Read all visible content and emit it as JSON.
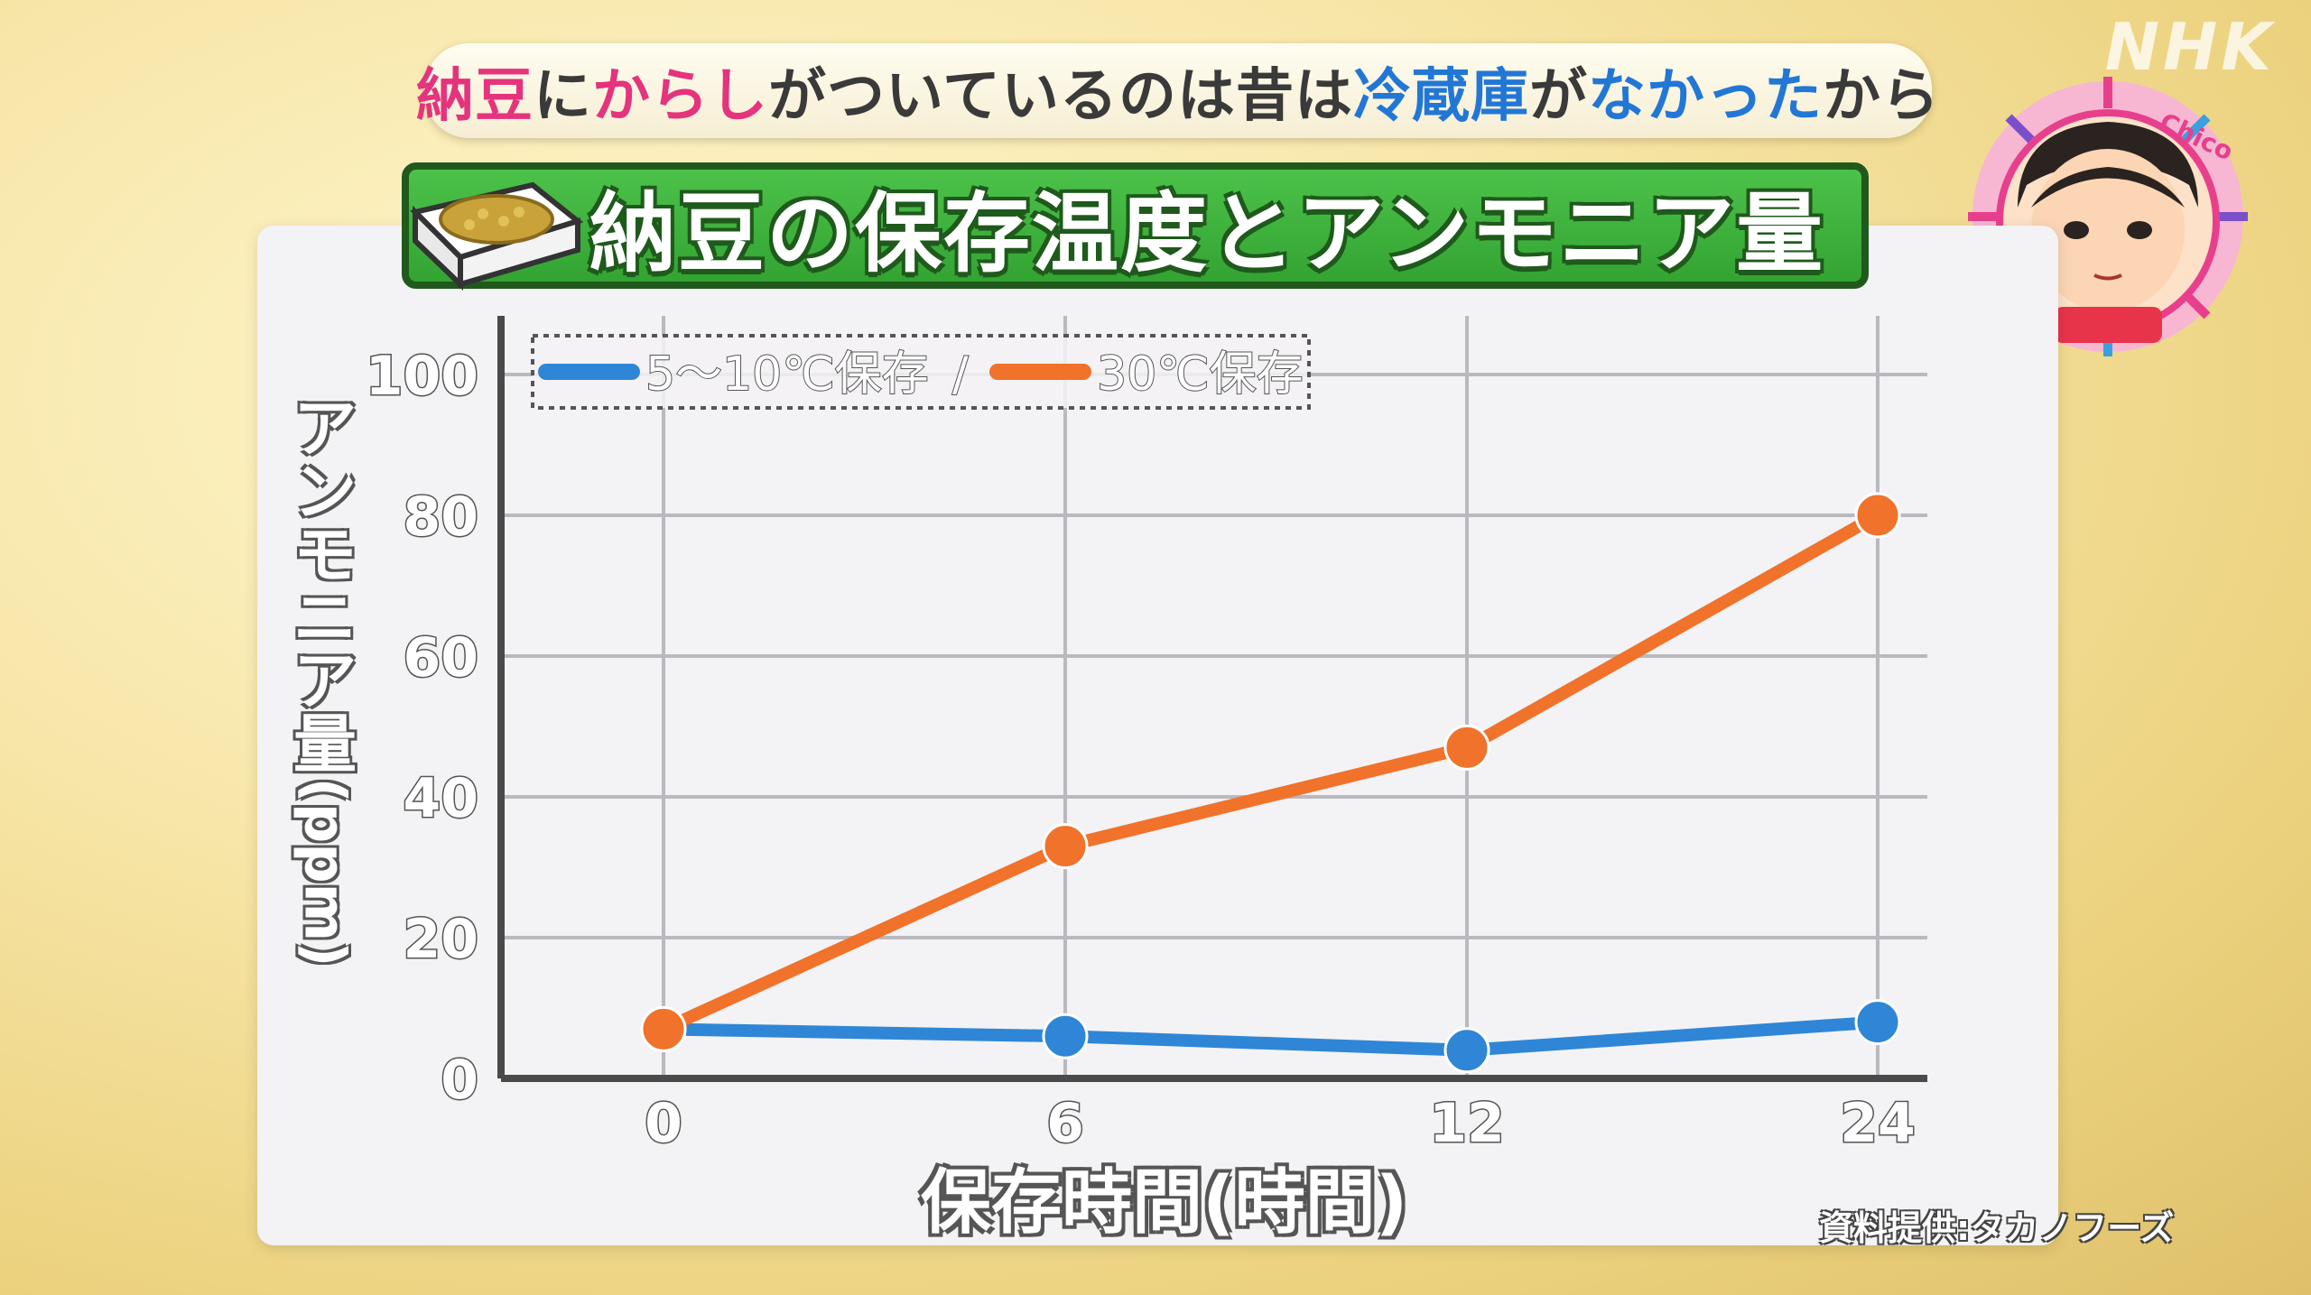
{
  "caption": {
    "parts": [
      {
        "text": "納豆",
        "color": "#e5337d"
      },
      {
        "text": "に",
        "color": "#3a3a3a"
      },
      {
        "text": "からし",
        "color": "#e5337d"
      },
      {
        "text": "がついているのは昔は",
        "color": "#3a3a3a"
      },
      {
        "text": "冷蔵庫",
        "color": "#2277d6"
      },
      {
        "text": "が",
        "color": "#3a3a3a"
      },
      {
        "text": "なかった",
        "color": "#2277d6"
      },
      {
        "text": "から",
        "color": "#3a3a3a"
      }
    ]
  },
  "logo": "NHK",
  "badge_text": "Chico",
  "chart_data": {
    "type": "line",
    "title": "納豆の保存温度とアンモニア量",
    "x": [
      0,
      6,
      12,
      24
    ],
    "x_tick_labels": [
      "0",
      "6",
      "12",
      "24"
    ],
    "xlabel": "保存時間(時間)",
    "ylabel_vertical": "アンモニア量",
    "ylabel_unit": "(ppm)",
    "y_ticks": [
      0,
      20,
      40,
      60,
      80,
      100
    ],
    "ylim": [
      0,
      100
    ],
    "grid": true,
    "legend_placement": "top-left",
    "series": [
      {
        "name": "5〜10℃保存",
        "color": "#2f86d6",
        "values": [
          7,
          6,
          4,
          8
        ]
      },
      {
        "name": "30℃保存",
        "color": "#f0722b",
        "values": [
          7,
          33,
          47,
          80
        ]
      }
    ],
    "legend_separator": "/",
    "source": "資料提供:タカノフーズ"
  }
}
